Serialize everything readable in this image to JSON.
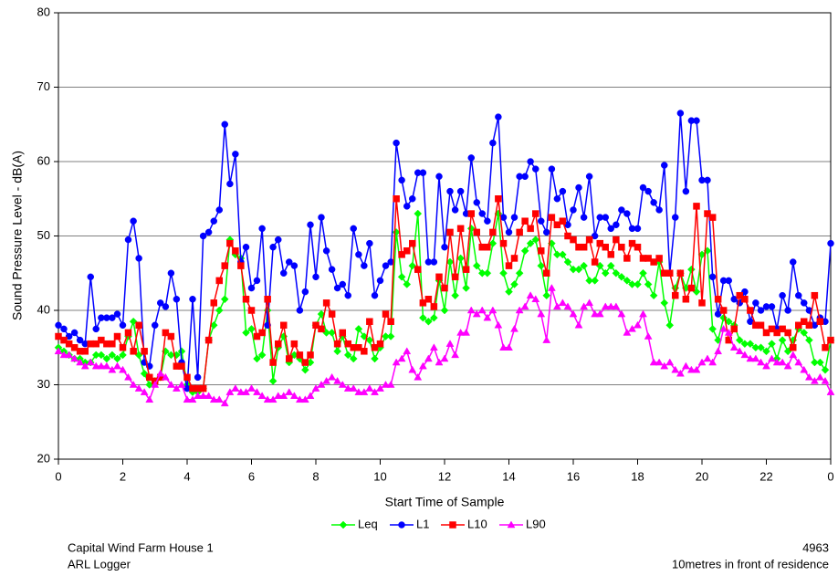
{
  "chart_data": {
    "type": "line",
    "y_label": "Sound Pressure Level - dB(A)",
    "x_label": "Start Time of Sample",
    "x": [
      0,
      0.17,
      0.33,
      0.5,
      0.67,
      0.83,
      1,
      1.17,
      1.33,
      1.5,
      1.67,
      1.83,
      2,
      2.17,
      2.33,
      2.5,
      2.67,
      2.83,
      3,
      3.17,
      3.33,
      3.5,
      3.67,
      3.83,
      4,
      4.17,
      4.33,
      4.5,
      4.67,
      4.83,
      5,
      5.17,
      5.33,
      5.5,
      5.67,
      5.83,
      6,
      6.17,
      6.33,
      6.5,
      6.67,
      6.83,
      7,
      7.17,
      7.33,
      7.5,
      7.67,
      7.83,
      8,
      8.17,
      8.33,
      8.5,
      8.67,
      8.83,
      9,
      9.17,
      9.33,
      9.5,
      9.67,
      9.83,
      10,
      10.17,
      10.33,
      10.5,
      10.67,
      10.83,
      11,
      11.17,
      11.33,
      11.5,
      11.67,
      11.83,
      12,
      12.17,
      12.33,
      12.5,
      12.67,
      12.83,
      13,
      13.17,
      13.33,
      13.5,
      13.67,
      13.83,
      14,
      14.17,
      14.33,
      14.5,
      14.67,
      14.83,
      15,
      15.17,
      15.33,
      15.5,
      15.67,
      15.83,
      16,
      16.17,
      16.33,
      16.5,
      16.67,
      16.83,
      17,
      17.17,
      17.33,
      17.5,
      17.67,
      17.83,
      18,
      18.17,
      18.33,
      18.5,
      18.67,
      18.83,
      19,
      19.17,
      19.33,
      19.5,
      19.67,
      19.83,
      20,
      20.17,
      20.33,
      20.5,
      20.67,
      20.83,
      21,
      21.17,
      21.33,
      21.5,
      21.67,
      21.83,
      22,
      22.17,
      22.33,
      22.5,
      22.67,
      22.83,
      23,
      23.17,
      23.33,
      23.5,
      23.67,
      23.83,
      24
    ],
    "series": [
      {
        "name": "Leq",
        "color": "#00ff00",
        "marker": "diamond",
        "values": [
          35,
          34.5,
          34,
          33.5,
          33.5,
          33,
          33,
          34,
          34,
          33.5,
          34,
          33.5,
          34,
          36.5,
          38.5,
          34,
          31.5,
          30,
          30.5,
          31,
          34.5,
          34,
          34,
          34.5,
          30,
          29,
          29,
          29.5,
          36,
          38,
          40,
          41.5,
          49.5,
          47.5,
          47,
          37,
          37.5,
          33.5,
          34,
          40,
          30.5,
          35,
          36.5,
          33,
          34,
          33.5,
          32,
          33,
          38,
          39.5,
          37,
          37,
          34.5,
          36.5,
          34,
          33.5,
          37.5,
          36.5,
          36,
          33.5,
          35,
          36.5,
          36.5,
          50.5,
          44.5,
          43.5,
          46,
          53,
          39,
          38.5,
          39,
          44,
          40,
          46.5,
          42,
          47,
          43,
          51,
          46,
          45,
          45,
          49,
          53,
          45,
          42.5,
          43.5,
          45,
          48,
          49,
          49.5,
          46,
          42,
          49,
          47.5,
          47.5,
          46.5,
          45.5,
          45.5,
          46,
          44,
          44,
          46,
          45,
          46,
          45,
          44.5,
          44,
          43.5,
          43.5,
          45,
          43.5,
          42,
          46.5,
          41,
          38,
          43,
          45,
          43,
          45.5,
          42.5,
          47.5,
          48,
          37.5,
          36,
          39,
          38.5,
          38,
          36,
          35.5,
          35.5,
          35,
          35,
          34.5,
          35.5,
          33.5,
          36,
          34.5,
          36,
          37.5,
          37,
          36,
          33,
          33,
          32,
          36
        ]
      },
      {
        "name": "L1",
        "color": "#0000ff",
        "marker": "circle",
        "values": [
          38,
          37.5,
          36.5,
          37,
          36,
          35.5,
          44.5,
          37.5,
          39,
          39,
          39,
          39.5,
          38,
          49.5,
          52,
          47,
          33,
          32.5,
          38,
          41,
          40.5,
          45,
          41.5,
          33,
          29.5,
          41.5,
          31,
          50,
          50.5,
          52,
          53.5,
          65,
          57,
          61,
          46.5,
          48.5,
          43,
          44,
          51,
          38,
          48.5,
          49.5,
          45,
          46.5,
          46,
          40,
          42.5,
          51.5,
          44.5,
          52.5,
          48,
          45.5,
          43,
          43.5,
          42,
          51,
          47.5,
          46,
          49,
          42,
          44,
          46,
          46.5,
          62.5,
          57.5,
          54,
          55,
          58.5,
          58.5,
          46.5,
          46.5,
          58,
          48.5,
          56,
          53.5,
          56,
          53,
          60.5,
          54.5,
          53,
          52,
          62.5,
          66,
          52.5,
          50.5,
          52.5,
          58,
          58,
          60,
          59,
          52,
          50.5,
          59,
          55,
          56,
          51.5,
          53.5,
          56.5,
          52.5,
          58,
          50,
          52.5,
          52.5,
          51,
          51.5,
          53.5,
          53,
          51,
          51,
          56.5,
          56,
          54.5,
          53.5,
          59.5,
          45,
          52.5,
          66.5,
          56,
          65.5,
          65.5,
          57.5,
          57.5,
          44.5,
          39.5,
          44,
          44,
          41.5,
          41,
          42.5,
          38.5,
          41,
          40,
          40.5,
          40.5,
          37.5,
          42,
          40,
          46.5,
          42,
          41,
          40,
          38,
          39,
          38.5,
          49
        ]
      },
      {
        "name": "L10",
        "color": "#ff0000",
        "marker": "square",
        "values": [
          36.5,
          36,
          35.5,
          35,
          34.5,
          34.5,
          35.5,
          35.5,
          36,
          35.5,
          35.5,
          36.5,
          35,
          37,
          34.5,
          38,
          34.5,
          31,
          30.5,
          31,
          37,
          36.5,
          32.5,
          32.5,
          31,
          29.5,
          29.5,
          29.5,
          36,
          41,
          44,
          46,
          49,
          48,
          46,
          41.5,
          40,
          36.5,
          37,
          41.5,
          33,
          35.5,
          38,
          33.5,
          35.5,
          34,
          33,
          34,
          38,
          37.5,
          41,
          39.5,
          35.5,
          37,
          35.5,
          35,
          35,
          34.5,
          38.5,
          35,
          35.5,
          39.5,
          38.5,
          55,
          47.5,
          48,
          49,
          45.5,
          41,
          41.5,
          40.5,
          44.5,
          43,
          50.5,
          44.5,
          51,
          45.5,
          53,
          50.5,
          48.5,
          48.5,
          50.5,
          55,
          49,
          46,
          47,
          50.5,
          52,
          51,
          53,
          48,
          45,
          52.5,
          51.5,
          52,
          50,
          49.5,
          48.5,
          48.5,
          49.5,
          46.5,
          49,
          48.5,
          47.5,
          49.5,
          48.5,
          47,
          49,
          48.5,
          47,
          47,
          46.5,
          47,
          45,
          45,
          42,
          45,
          41.5,
          43,
          54,
          41,
          53,
          52.5,
          41.5,
          40,
          36,
          37.5,
          42,
          41.5,
          40,
          38,
          38,
          37,
          37.5,
          37,
          37.5,
          37,
          35,
          38,
          38.5,
          38,
          42,
          38.5,
          35,
          36
        ]
      },
      {
        "name": "L90",
        "color": "#ff00ff",
        "marker": "triangle",
        "values": [
          34.5,
          34,
          34,
          33.5,
          33,
          32.5,
          33,
          32.5,
          32.5,
          32.5,
          32,
          32.5,
          32,
          31,
          30,
          29.5,
          29,
          28,
          30,
          31.5,
          31,
          30,
          29.5,
          30,
          28,
          28,
          28.5,
          28.5,
          28.5,
          28,
          28,
          27.5,
          29,
          29.5,
          29,
          29,
          29.5,
          29,
          28.5,
          28,
          28,
          28.5,
          28.5,
          29,
          28.5,
          28,
          28,
          28.5,
          29.5,
          30,
          30.5,
          31,
          30.5,
          30,
          29.5,
          29.5,
          29,
          29,
          29.5,
          29,
          29.5,
          30,
          30,
          33,
          33.5,
          34.5,
          32,
          31,
          32.5,
          33.5,
          35,
          33,
          33.5,
          35.5,
          34,
          37,
          37,
          40,
          39.5,
          40,
          39,
          40,
          38,
          35,
          35,
          37.5,
          40,
          40.5,
          42,
          41.5,
          39.5,
          36,
          43,
          40.5,
          41,
          40.5,
          39.5,
          38,
          40.5,
          41,
          39.5,
          39.5,
          40.5,
          40.5,
          40.5,
          39.5,
          37,
          37.5,
          38,
          39.5,
          36.5,
          33,
          33,
          32.5,
          33,
          32,
          31.5,
          32.5,
          32,
          32,
          33,
          33.5,
          33,
          34.5,
          37.5,
          37,
          35,
          34.5,
          34,
          33.5,
          33.5,
          33,
          32.5,
          33.5,
          33,
          33,
          32.5,
          34,
          33,
          32,
          31,
          30.5,
          31,
          30.5,
          29
        ]
      }
    ],
    "xlim": [
      0,
      24
    ],
    "xticks": [
      0,
      2,
      4,
      6,
      8,
      10,
      12,
      14,
      16,
      18,
      20,
      22,
      {
        "value": 24,
        "label": "0"
      }
    ],
    "ylim": [
      20,
      80
    ],
    "yticks": [
      20,
      30,
      40,
      50,
      60,
      70,
      80
    ],
    "grid": true,
    "legend": "bottom"
  },
  "footer": {
    "left": [
      "Capital Wind Farm House 1",
      "ARL Logger"
    ],
    "right": [
      "4963",
      "10metres in front of residence"
    ]
  }
}
